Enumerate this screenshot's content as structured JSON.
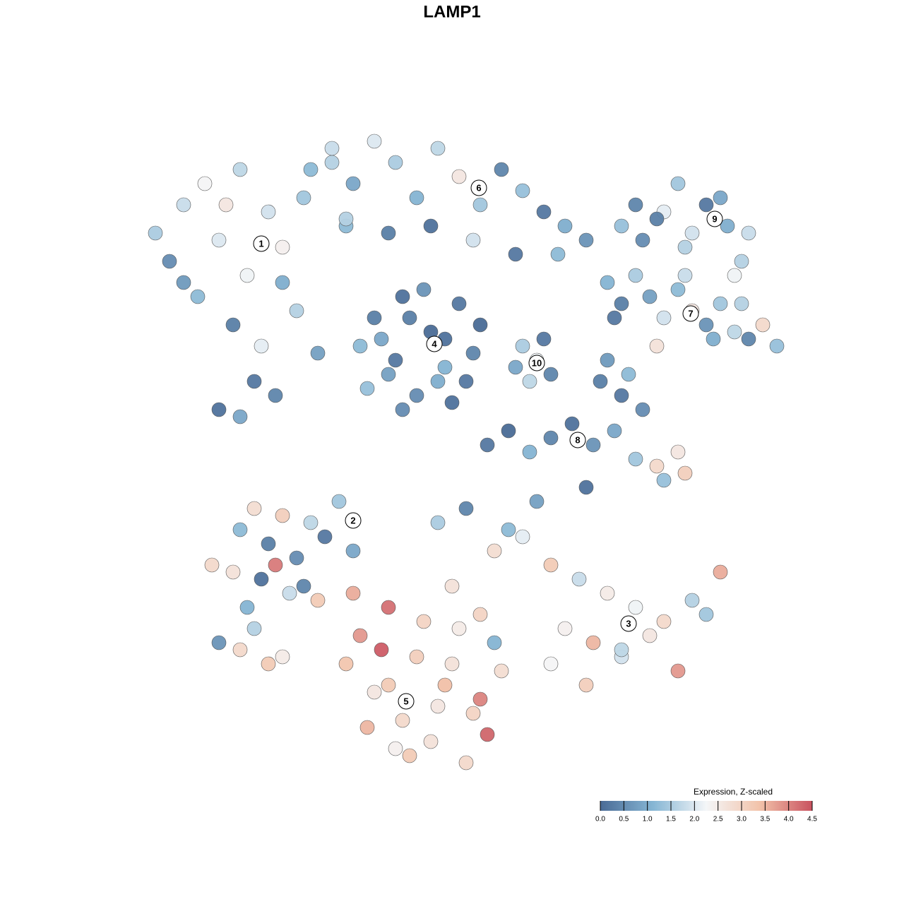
{
  "chart_data": {
    "type": "scatter",
    "title": "LAMP1",
    "xlim": [
      -46.5,
      48.5
    ],
    "ylim": [
      -47,
      47
    ],
    "series": [
      {
        "name": "1",
        "label_x": -27,
        "label_y": 29.5,
        "x": [
          -42,
          -40,
          -38,
          -36,
          -35,
          -33,
          -31,
          -30,
          -29,
          -28,
          -26,
          -25,
          -24,
          -22,
          -21,
          -19,
          -17,
          -15,
          -33,
          -30,
          -27,
          -24,
          -38,
          -32
        ],
        "y": [
          31,
          27,
          35,
          22,
          38,
          30,
          18,
          40,
          25,
          10,
          34,
          8,
          29,
          20,
          36,
          14,
          41,
          32,
          6,
          5,
          15,
          24,
          24,
          35
        ],
        "values": [
          1.5,
          0.5,
          1.8,
          1.2,
          2.3,
          2.0,
          0.3,
          1.7,
          2.2,
          0.2,
          1.9,
          0.4,
          2.4,
          1.6,
          1.4,
          0.8,
          1.6,
          1.2,
          0.1,
          0.9,
          2.1,
          1.0,
          0.7,
          2.6
        ]
      },
      {
        "name": "6",
        "label_x": 3.8,
        "label_y": 37.4,
        "x": [
          -20,
          -17,
          -14,
          -11,
          -8,
          -5,
          -2,
          1,
          4,
          7,
          10,
          13,
          16,
          19,
          -15,
          -9,
          -3,
          3,
          9,
          15
        ],
        "y": [
          40,
          43,
          38,
          44,
          41,
          36,
          43,
          39,
          35,
          40,
          37,
          34,
          32,
          30,
          33,
          31,
          32,
          30,
          28,
          28
        ],
        "values": [
          1.2,
          1.8,
          0.9,
          2.0,
          1.5,
          1.1,
          1.7,
          2.6,
          1.4,
          0.4,
          1.3,
          0.2,
          1.0,
          0.6,
          1.6,
          0.3,
          0.1,
          1.9,
          0.2,
          1.2
        ]
      },
      {
        "name": "4",
        "label_x": -2.5,
        "label_y": 15.3,
        "x": [
          -13,
          -11,
          -9,
          -7,
          -5,
          -3,
          -1,
          1,
          3,
          -12,
          -8,
          -4,
          0,
          4,
          -10,
          -6,
          -2,
          2,
          -7,
          -1
        ],
        "y": [
          15,
          19,
          11,
          22,
          8,
          17,
          12,
          21,
          14,
          9,
          13,
          23,
          7,
          18,
          16,
          19,
          10,
          10,
          6,
          16
        ],
        "values": [
          1.2,
          0.3,
          0.8,
          0.1,
          0.5,
          0.0,
          1.1,
          0.2,
          0.4,
          1.3,
          0.2,
          0.6,
          0.1,
          0.0,
          0.9,
          0.3,
          1.0,
          0.2,
          0.5,
          0.1
        ]
      },
      {
        "name": "10",
        "label_x": 12,
        "label_y": 12.6,
        "x": [
          10,
          12,
          14,
          11,
          13,
          9
        ],
        "y": [
          15,
          13,
          11,
          10,
          16,
          12
        ],
        "values": [
          1.5,
          2.2,
          0.4,
          1.7,
          0.2,
          0.9
        ]
      },
      {
        "name": "9",
        "label_x": 37.2,
        "label_y": 33,
        "x": [
          24,
          27,
          30,
          33,
          36,
          39,
          42,
          26,
          32,
          38,
          41,
          34,
          29,
          40
        ],
        "y": [
          32,
          30,
          34,
          29,
          35,
          32,
          31,
          35,
          38,
          36,
          27,
          31,
          33,
          25
        ],
        "values": [
          1.3,
          0.5,
          2.1,
          1.6,
          0.2,
          1.0,
          1.8,
          0.4,
          1.4,
          0.9,
          1.6,
          1.9,
          0.3,
          2.2
        ]
      },
      {
        "name": "7",
        "label_x": 33.8,
        "label_y": 19.6,
        "x": [
          22,
          24,
          26,
          28,
          30,
          32,
          34,
          36,
          38,
          40,
          42,
          44,
          46,
          29,
          37,
          41,
          23,
          33
        ],
        "y": [
          24,
          21,
          25,
          22,
          19,
          23,
          20,
          18,
          21,
          17,
          16,
          18,
          15,
          15,
          16,
          21,
          19,
          25
        ],
        "values": [
          1.1,
          0.3,
          1.5,
          0.8,
          1.9,
          1.2,
          2.6,
          0.6,
          1.4,
          1.7,
          0.4,
          2.9,
          1.3,
          2.7,
          1.0,
          1.6,
          0.2,
          1.8
        ]
      },
      {
        "name": "8",
        "label_x": 17.8,
        "label_y": 1.7,
        "x": [
          5,
          8,
          11,
          14,
          17,
          20,
          23,
          26,
          29,
          32,
          21,
          24,
          27,
          30,
          33,
          19,
          22,
          25
        ],
        "y": [
          1,
          3,
          0,
          2,
          4,
          1,
          3,
          -1,
          -2,
          0,
          10,
          8,
          6,
          -4,
          -3,
          -5,
          13,
          11
        ],
        "values": [
          0.2,
          0.0,
          1.1,
          0.4,
          0.1,
          0.6,
          0.9,
          1.4,
          2.9,
          2.6,
          0.3,
          0.2,
          0.5,
          1.3,
          3.1,
          0.1,
          0.7,
          1.2
        ]
      },
      {
        "name": "2",
        "label_x": -14,
        "label_y": -9.7,
        "x": [
          -30,
          -28,
          -26,
          -24,
          -22,
          -20,
          -18,
          -16,
          -14,
          -31,
          -27,
          -23,
          -19,
          -34,
          -29,
          -25,
          -21,
          -33,
          -30,
          -26,
          -24,
          -28
        ],
        "y": [
          -11,
          -8,
          -13,
          -9,
          -15,
          -10,
          -12,
          -7,
          -14,
          -17,
          -18,
          -20,
          -21,
          -16,
          -22,
          -16,
          -19,
          -27,
          -28,
          -30,
          -29,
          -25
        ],
        "values": [
          1.2,
          2.8,
          0.3,
          3.1,
          0.5,
          1.7,
          0.2,
          1.4,
          0.9,
          2.7,
          0.1,
          1.8,
          3.2,
          2.9,
          1.1,
          4.1,
          0.4,
          0.6,
          2.9,
          3.2,
          2.5,
          1.6
        ]
      },
      {
        "name": "5",
        "label_x": -6.5,
        "label_y": -35.3,
        "x": [
          -15,
          -13,
          -11,
          -9,
          -7,
          -5,
          -3,
          -1,
          1,
          3,
          5,
          7,
          -14,
          -10,
          -6,
          -2,
          2,
          6,
          -12,
          -8,
          -4,
          0,
          4,
          -9
        ],
        "y": [
          -30,
          -26,
          -34,
          -22,
          -38,
          -29,
          -41,
          -33,
          -25,
          -37,
          -40,
          -31,
          -20,
          -28,
          -43,
          -36,
          -44,
          -27,
          -39,
          -42,
          -24,
          -30,
          -35,
          -33
        ],
        "values": [
          3.3,
          3.8,
          2.6,
          4.2,
          2.9,
          3.1,
          2.7,
          3.4,
          2.5,
          3.0,
          4.3,
          2.8,
          3.6,
          4.4,
          3.2,
          2.6,
          2.9,
          1.1,
          3.5,
          2.4,
          3.0,
          2.7,
          4.0,
          3.2
        ]
      },
      {
        "name": "3",
        "label_x": 25,
        "label_y": -24.3,
        "x": [
          -2,
          2,
          6,
          10,
          14,
          18,
          22,
          26,
          30,
          34,
          38,
          0,
          4,
          8,
          12,
          16,
          20,
          24,
          28,
          32,
          36,
          14,
          19,
          24
        ],
        "y": [
          -10,
          -8,
          -14,
          -12,
          -16,
          -18,
          -20,
          -22,
          -24,
          -21,
          -17,
          -19,
          -23,
          -11,
          -7,
          -25,
          -27,
          -29,
          -26,
          -31,
          -23,
          -30,
          -33,
          -28
        ],
        "values": [
          1.5,
          0.4,
          2.8,
          2.1,
          3.2,
          1.8,
          2.5,
          2.2,
          2.9,
          1.6,
          3.6,
          2.7,
          3.0,
          1.2,
          0.8,
          2.4,
          3.5,
          1.9,
          2.6,
          3.8,
          1.4,
          2.3,
          3.1,
          1.7
        ]
      }
    ],
    "colorbar": {
      "title": "Expression, Z-scaled",
      "lim": [
        0,
        4.5
      ],
      "ticks": [
        {
          "value": 0,
          "label": "0.0"
        },
        0.5,
        {
          "value": 1,
          "label": "1.0"
        },
        1.5,
        {
          "value": 2,
          "label": "2.0"
        },
        2.5,
        {
          "value": 3,
          "label": "3.0"
        },
        3.5,
        {
          "value": 4,
          "label": "4.0"
        },
        4.5
      ],
      "colors": [
        "#4a6b96",
        "#86b6d4",
        "#f4f6f8",
        "#f2c3aa",
        "#c9525f"
      ]
    }
  }
}
